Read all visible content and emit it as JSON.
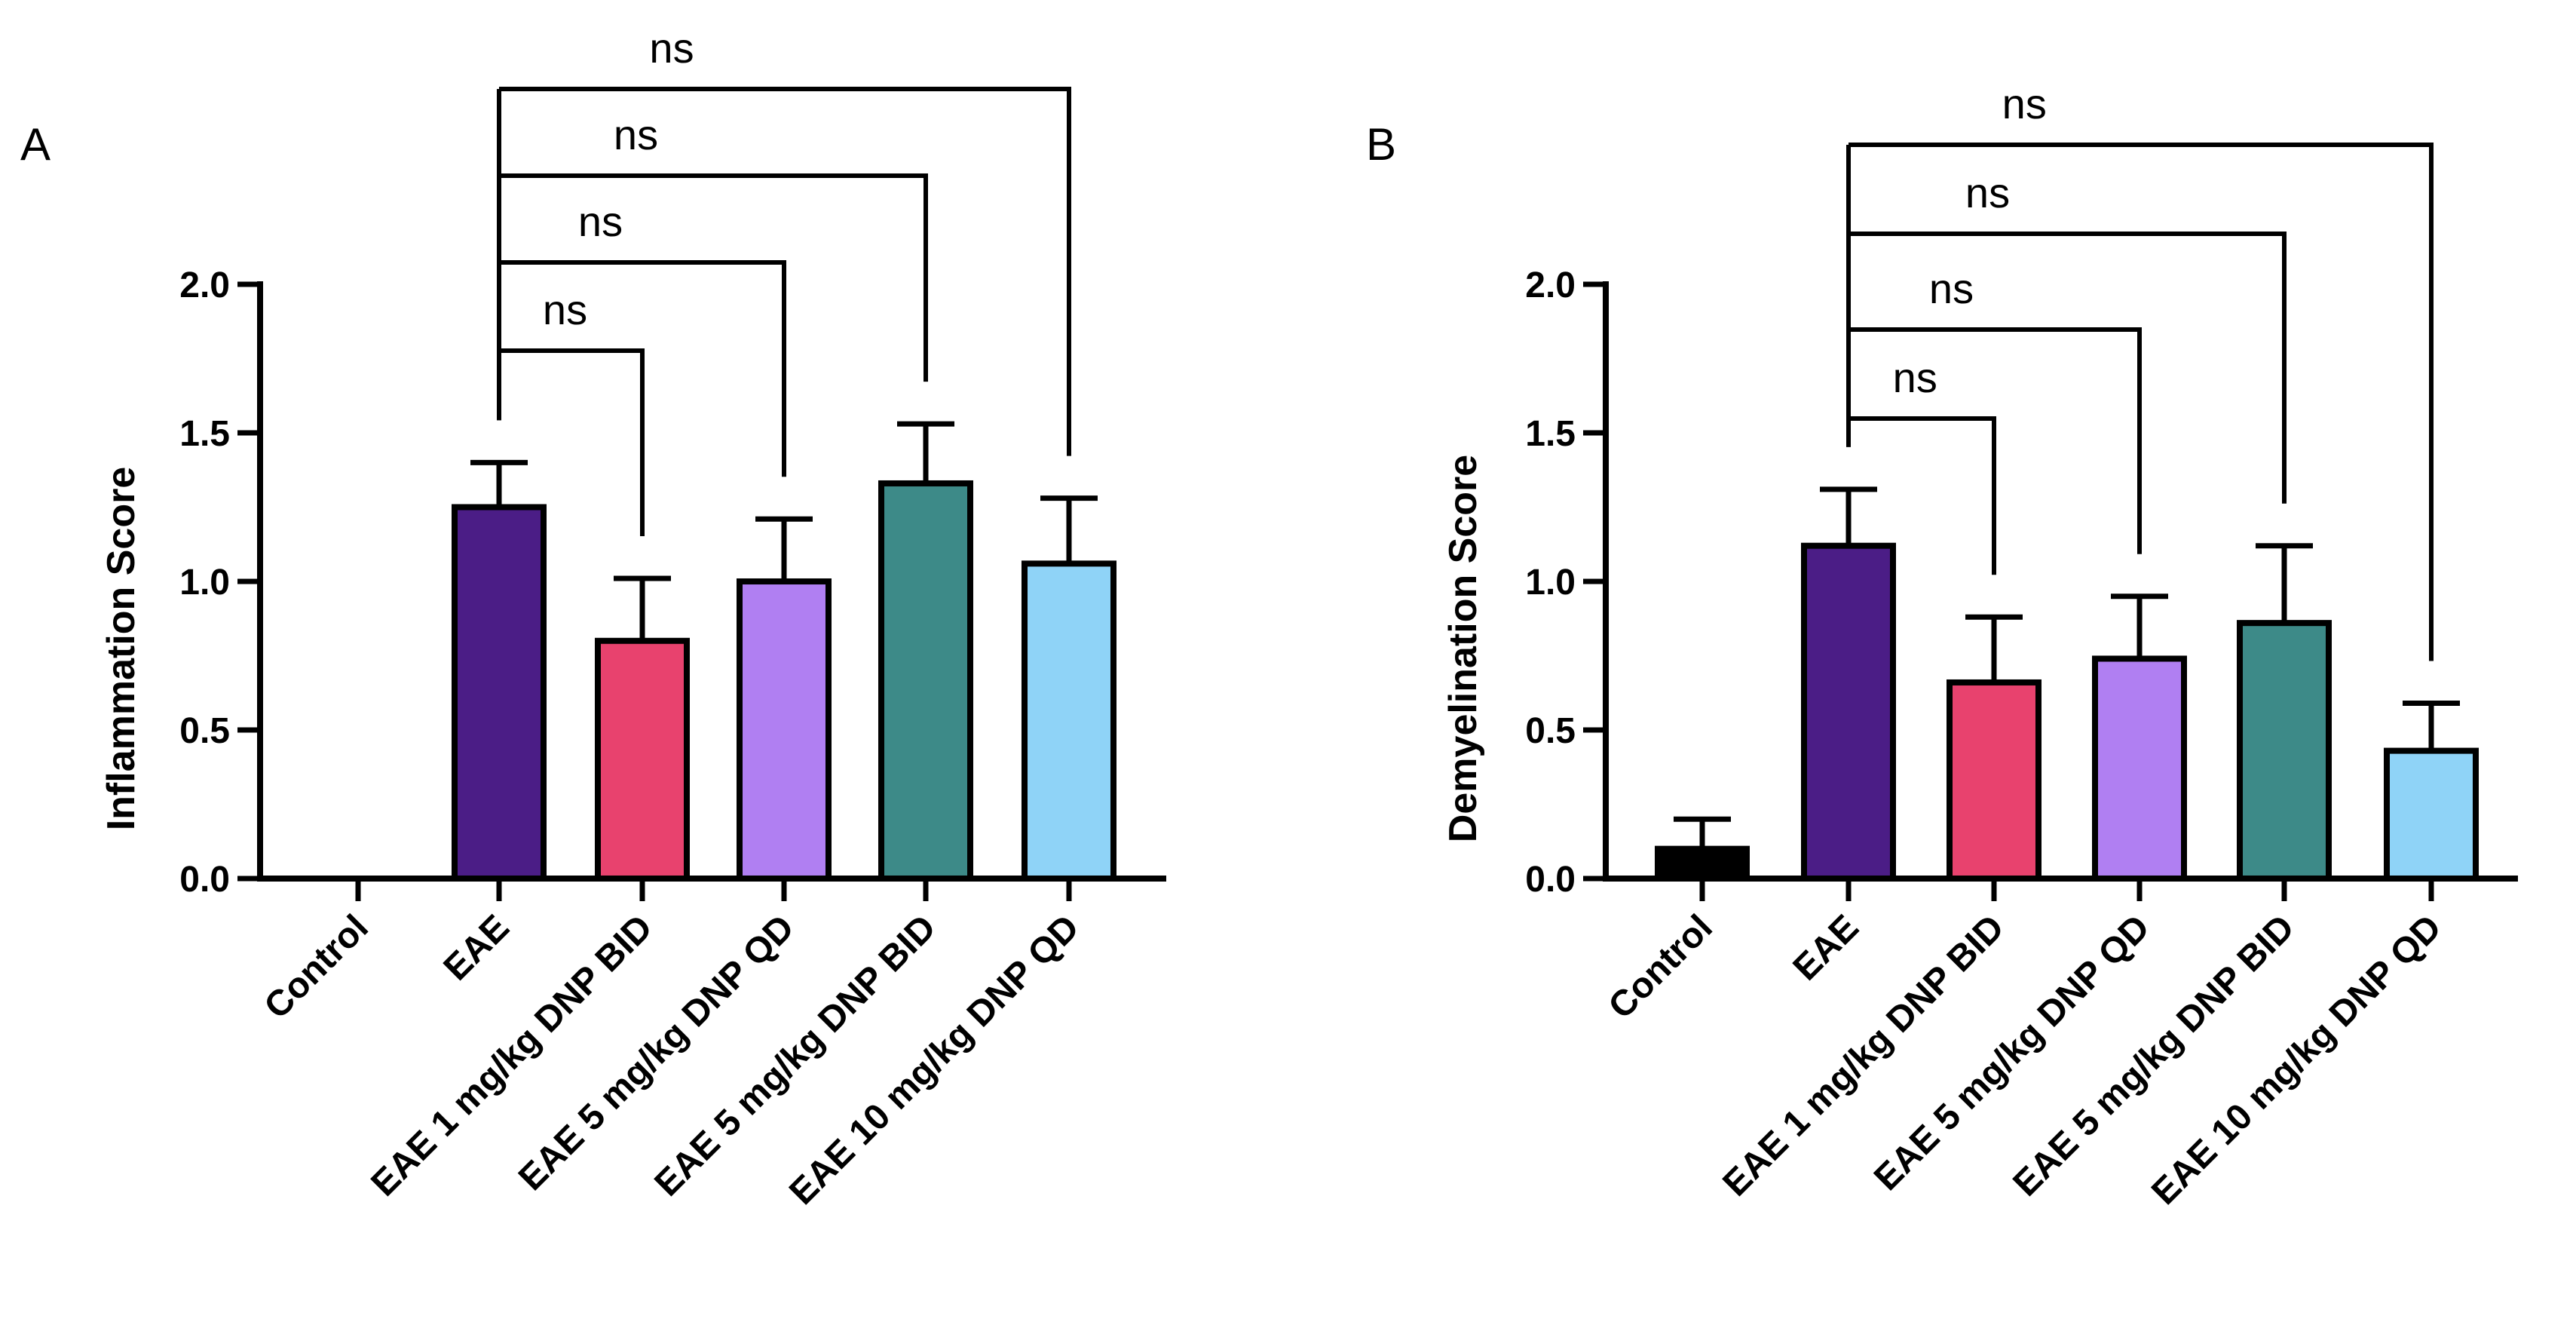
{
  "chart_data": [
    {
      "type": "bar",
      "panel_label": "A",
      "ylabel": "Inflammation Score",
      "ylim": [
        0,
        2.0
      ],
      "yticks": [
        "0.0",
        "0.5",
        "1.0",
        "1.5",
        "2.0"
      ],
      "categories": [
        "Control",
        "EAE",
        "EAE 1 mg/kg DNP BID",
        "EAE 5 mg/kg DNP QD",
        "EAE 5 mg/kg DNP BID",
        "EAE 10 mg/kg DNP QD"
      ],
      "values": [
        0.0,
        1.25,
        0.8,
        1.0,
        1.33,
        1.06
      ],
      "errors": [
        0.0,
        0.15,
        0.21,
        0.21,
        0.2,
        0.22
      ],
      "colors": [
        "#000000",
        "#4b1d86",
        "#e8426e",
        "#b07ff2",
        "#3d8a88",
        "#8fd3f7"
      ],
      "comparisons": [
        {
          "from": "EAE",
          "to": "EAE 1 mg/kg DNP BID",
          "label": "ns"
        },
        {
          "from": "EAE",
          "to": "EAE 5 mg/kg DNP QD",
          "label": "ns"
        },
        {
          "from": "EAE",
          "to": "EAE 5 mg/kg DNP BID",
          "label": "ns"
        },
        {
          "from": "EAE",
          "to": "EAE 10 mg/kg DNP QD",
          "label": "ns"
        }
      ]
    },
    {
      "type": "bar",
      "panel_label": "B",
      "ylabel": "Demyelination Score",
      "ylim": [
        0,
        2.0
      ],
      "yticks": [
        "0.0",
        "0.5",
        "1.0",
        "1.5",
        "2.0"
      ],
      "categories": [
        "Control",
        "EAE",
        "EAE 1 mg/kg DNP BID",
        "EAE 5 mg/kg DNP QD",
        "EAE 5 mg/kg DNP BID",
        "EAE 10 mg/kg DNP QD"
      ],
      "values": [
        0.1,
        1.12,
        0.66,
        0.74,
        0.86,
        0.43
      ],
      "errors": [
        0.1,
        0.19,
        0.22,
        0.21,
        0.26,
        0.16
      ],
      "colors": [
        "#000000",
        "#4b1d86",
        "#e8426e",
        "#b07ff2",
        "#3d8a88",
        "#8fd3f7"
      ],
      "comparisons": [
        {
          "from": "EAE",
          "to": "EAE 1 mg/kg DNP BID",
          "label": "ns"
        },
        {
          "from": "EAE",
          "to": "EAE 5 mg/kg DNP QD",
          "label": "ns"
        },
        {
          "from": "EAE",
          "to": "EAE 5 mg/kg DNP BID",
          "label": "ns"
        },
        {
          "from": "EAE",
          "to": "EAE 10 mg/kg DNP QD",
          "label": "ns"
        }
      ]
    }
  ]
}
